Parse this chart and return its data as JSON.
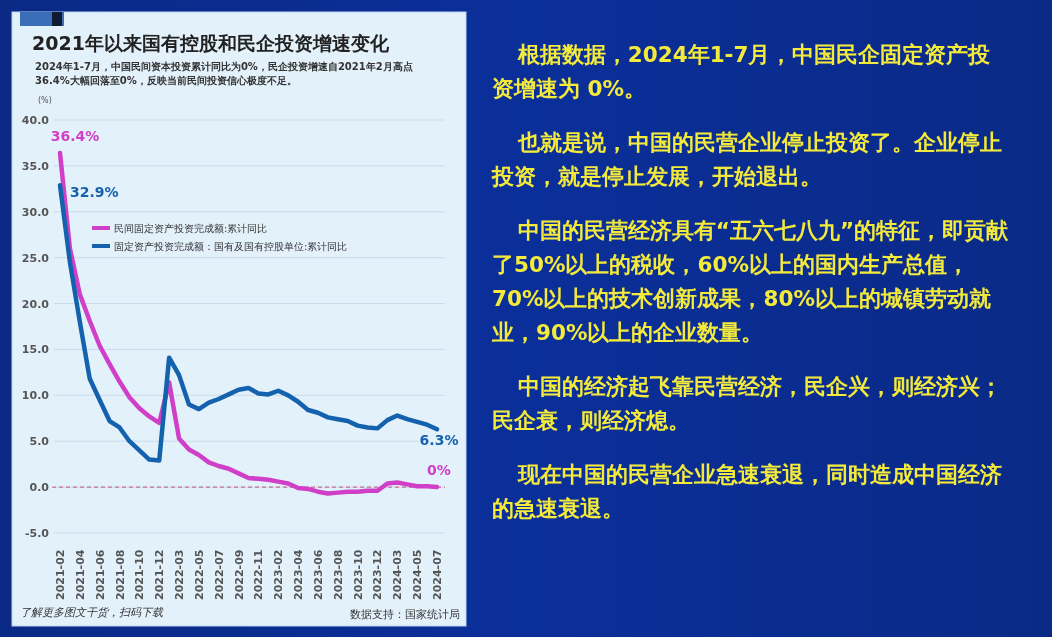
{
  "chart_data": {
    "type": "line",
    "title": "2021年以来国有控股和民企投资增速变化",
    "subtitle": "2024年1-7月，中国民间资本投资累计同比为0%，民企投资增速自2021年2月高点36.4%大幅回落至0%，反映当前民间投资信心极度不足。",
    "ylabel": "(%)",
    "categories": [
      "2021-02",
      null,
      "2021-04",
      null,
      "2021-06",
      null,
      "2021-08",
      null,
      "2021-10",
      null,
      "2021-12",
      null,
      "2022-03",
      null,
      "2022-05",
      null,
      "2022-07",
      null,
      "2022-09",
      null,
      "2022-11",
      null,
      "2023-02",
      null,
      "2023-04",
      null,
      "2023-06",
      null,
      "2023-08",
      null,
      "2023-10",
      null,
      "2023-12",
      null,
      "2024-03",
      null,
      "2024-05",
      null,
      "2024-07"
    ],
    "series": [
      {
        "name": "民间固定资产投资完成额:累计同比",
        "color": "#d03fc8",
        "values": [
          36.4,
          26.0,
          21.0,
          18.1,
          15.4,
          13.4,
          11.5,
          9.8,
          8.6,
          7.7,
          7.0,
          11.4,
          5.3,
          4.1,
          3.5,
          2.7,
          2.3,
          2.0,
          1.5,
          1.0,
          0.9,
          0.8,
          0.6,
          0.4,
          -0.1,
          -0.2,
          -0.5,
          -0.7,
          -0.6,
          -0.5,
          -0.5,
          -0.4,
          -0.4,
          0.4,
          0.5,
          0.3,
          0.1,
          0.1,
          0.0
        ]
      },
      {
        "name": "固定资产投资完成额：国有及国有控股单位:累计同比",
        "color": "#1462ad",
        "values": [
          32.9,
          24.5,
          18.0,
          11.8,
          9.5,
          7.2,
          6.5,
          5.0,
          4.0,
          3.0,
          2.9,
          14.1,
          12.2,
          9.0,
          8.5,
          9.2,
          9.6,
          10.1,
          10.6,
          10.8,
          10.2,
          10.1,
          10.5,
          10.0,
          9.3,
          8.4,
          8.1,
          7.6,
          7.4,
          7.2,
          6.7,
          6.5,
          6.4,
          7.3,
          7.8,
          7.4,
          7.1,
          6.8,
          6.3
        ]
      }
    ],
    "ylim": [
      -5,
      40
    ],
    "yticks": [
      {
        "value": -5,
        "label": "-5.0"
      },
      {
        "value": 0,
        "label": "0.0"
      },
      {
        "value": 5,
        "label": "5.0"
      },
      {
        "value": 10,
        "label": "10.0"
      },
      {
        "value": 15,
        "label": "15.0"
      },
      {
        "value": 20,
        "label": "20.0"
      },
      {
        "value": 25,
        "label": "25.0"
      },
      {
        "value": 30,
        "label": "30.0"
      },
      {
        "value": 35,
        "label": "35.0"
      },
      {
        "value": 40,
        "label": "40.0"
      }
    ],
    "grid": "y",
    "legend": "top left",
    "ref_lines": [
      {
        "axis": "y",
        "value": 0,
        "color": "#c05078",
        "line_style": "dashed"
      }
    ],
    "annotations": [
      {
        "text": "36.4%",
        "x": "2021-02",
        "y": 36.4
      },
      {
        "text": "32.9%",
        "x": "2021-02",
        "y": 32.9
      },
      {
        "text": "6.3%",
        "x": "2024-07",
        "y": 6.3
      },
      {
        "text": "0%",
        "x": "2024-07",
        "y": 0.0
      },
      "了解更多图文干货，扫码下载",
      "数据支持：国家统计局",
      "根据数据，2024年1-7月，中国民企固定资产投资增速为 0%。",
      "也就是说，中国的民营企业停止投资了。企业停止投资，就是停止发展，开始退出。",
      "中国的民营经济具有“五六七八九”的特征，即贡献了50%以上的税收，60%以上的国内生产总值，70%以上的技术创新成果，80%以上的城镇劳动就业，90%以上的企业数量。",
      "中国的经济起飞靠民营经济，民企兴，则经济兴；民企衰，则经济熄。",
      "现在中国的民营企业急速衰退，同时造成中国经济的急速衰退。"
    ]
  }
}
